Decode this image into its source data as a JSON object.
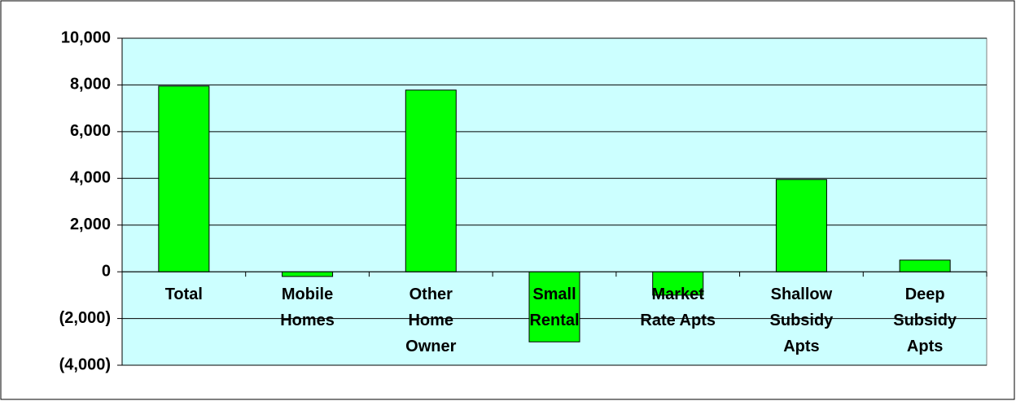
{
  "chart_data": {
    "type": "bar",
    "categories": [
      "Total",
      "Mobile Homes",
      "Other Home Owner",
      "Small Rental",
      "Market Rate Apts",
      "Shallow Subsidy Apts",
      "Deep Subsidy Apts"
    ],
    "values": [
      7950,
      -200,
      7780,
      -3000,
      -1000,
      3950,
      500
    ],
    "color": "#00ff00",
    "ylim": [
      -4000,
      10000
    ],
    "yticks": [
      {
        "value": -4000,
        "label": "(4,000)"
      },
      {
        "value": -2000,
        "label": "(2,000)"
      },
      0,
      {
        "value": 2000,
        "label": "2,000"
      },
      {
        "value": 4000,
        "label": "4,000"
      },
      {
        "value": 6000,
        "label": "6,000"
      },
      {
        "value": 8000,
        "label": "8,000"
      },
      {
        "value": 10000,
        "label": "10,000"
      }
    ],
    "grid": true
  }
}
